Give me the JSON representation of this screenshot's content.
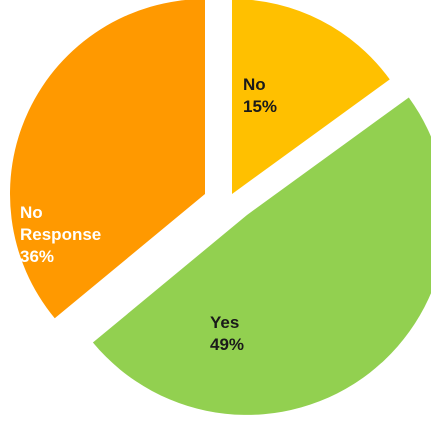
{
  "chart_data": {
    "type": "pie",
    "title": "",
    "slices": [
      {
        "label": "No",
        "percent_label": "15%",
        "value": 15,
        "color": "#FFC000"
      },
      {
        "label": "Yes",
        "percent_label": "49%",
        "value": 49,
        "color": "#92D050"
      },
      {
        "label": "No Response",
        "percent_label": "36%",
        "value": 36,
        "color": "#FF9900"
      }
    ],
    "exploded": true,
    "legend": "none",
    "label_color_light": "#ffffff",
    "label_color_dark": "#1a1a1a"
  }
}
